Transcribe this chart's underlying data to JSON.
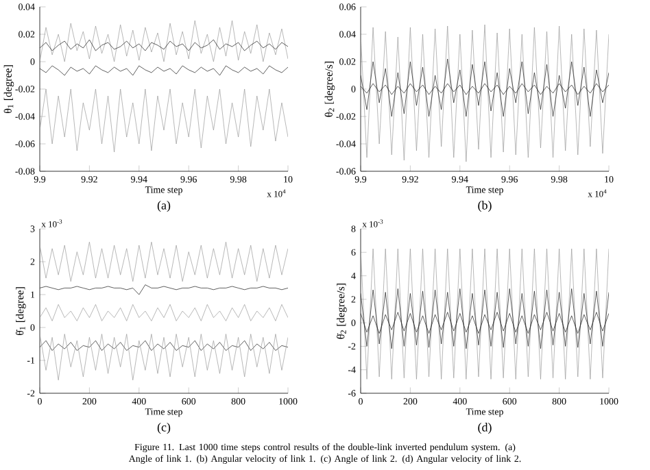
{
  "chart_data": [
    {
      "type": "line",
      "title": "(a)",
      "xlabel": "Time step",
      "ylabel": "θ$_{1}$ [degree]",
      "annotations": [
        "x 10$^{4}$"
      ],
      "xlim": [
        9.9,
        10
      ],
      "xticks": [
        9.9,
        9.92,
        9.94,
        9.96,
        9.98,
        10
      ],
      "ylim": [
        -0.08,
        0.04
      ],
      "yticks": [
        -0.08,
        -0.06,
        -0.04,
        -0.02,
        0,
        0.02,
        0.04
      ],
      "x": [
        9.9,
        9.9025,
        9.905,
        9.9075,
        9.91,
        9.9125,
        9.915,
        9.9175,
        9.92,
        9.9225,
        9.925,
        9.9275,
        9.93,
        9.9325,
        9.935,
        9.9375,
        9.94,
        9.9425,
        9.945,
        9.9475,
        9.95,
        9.9525,
        9.955,
        9.9575,
        9.96,
        9.9625,
        9.965,
        9.9675,
        9.97,
        9.9725,
        9.975,
        9.9775,
        9.98,
        9.9825,
        9.985,
        9.9875,
        9.99,
        9.9925,
        9.995,
        9.9975,
        10
      ],
      "series": [
        {
          "color": "#999999",
          "values": [
            -0.05,
            -0.02,
            -0.06,
            -0.025,
            -0.055,
            -0.02,
            -0.065,
            -0.03,
            -0.05,
            -0.02,
            -0.06,
            -0.025,
            -0.066,
            -0.02,
            -0.055,
            -0.03,
            -0.06,
            -0.02,
            -0.065,
            -0.025,
            -0.05,
            -0.02,
            -0.06,
            -0.03,
            -0.055,
            -0.02,
            -0.063,
            -0.025,
            -0.05,
            -0.02,
            -0.06,
            -0.03,
            -0.055,
            -0.02,
            -0.062,
            -0.025,
            -0.05,
            -0.02,
            -0.058,
            -0.03,
            -0.055
          ]
        },
        {
          "color": "#999999",
          "values": [
            0.0,
            0.025,
            0.005,
            0.02,
            0.0,
            0.028,
            0.008,
            0.022,
            0.002,
            0.026,
            0.006,
            0.02,
            0.0,
            0.027,
            0.004,
            0.023,
            0.001,
            0.025,
            0.007,
            0.021,
            0.0,
            0.028,
            0.005,
            0.022,
            0.002,
            0.03,
            0.006,
            0.02,
            0.0,
            0.025,
            0.004,
            0.03,
            0.001,
            0.022,
            0.006,
            0.027,
            0.0,
            0.021,
            0.005,
            0.024,
            0.002
          ]
        },
        {
          "color": "#1a1a1a",
          "values": [
            0.01,
            0.014,
            0.008,
            0.012,
            0.015,
            0.009,
            0.013,
            0.01,
            0.016,
            0.008,
            0.012,
            0.014,
            0.009,
            0.011,
            0.015,
            0.01,
            0.013,
            0.008,
            0.014,
            0.012,
            0.009,
            0.015,
            0.011,
            0.013,
            0.008,
            0.014,
            0.01,
            0.012,
            0.016,
            0.009,
            0.013,
            0.011,
            0.014,
            0.008,
            0.012,
            0.015,
            0.01,
            0.013,
            0.009,
            0.014,
            0.011
          ]
        },
        {
          "color": "#1a1a1a",
          "values": [
            -0.005,
            -0.008,
            -0.003,
            -0.006,
            -0.01,
            -0.004,
            -0.007,
            -0.005,
            -0.009,
            -0.003,
            -0.006,
            -0.008,
            -0.004,
            -0.007,
            -0.005,
            -0.01,
            -0.003,
            -0.006,
            -0.008,
            -0.004,
            -0.007,
            -0.005,
            -0.009,
            -0.003,
            -0.006,
            -0.008,
            -0.004,
            -0.007,
            -0.005,
            -0.01,
            -0.003,
            -0.006,
            -0.008,
            -0.004,
            -0.007,
            -0.005,
            -0.009,
            -0.003,
            -0.006,
            -0.008,
            -0.004
          ]
        }
      ]
    },
    {
      "type": "line",
      "title": "(b)",
      "xlabel": "Time step",
      "ylabel": "θ$_{2}$ [degree/s]",
      "annotations": [
        "x 10$^{4}$"
      ],
      "xlim": [
        9.9,
        10
      ],
      "xticks": [
        9.9,
        9.92,
        9.94,
        9.96,
        9.98,
        10
      ],
      "ylim": [
        -0.06,
        0.06
      ],
      "yticks": [
        -0.06,
        -0.04,
        -0.02,
        0,
        0.02,
        0.04,
        0.06
      ],
      "x": [
        9.9,
        9.9025,
        9.905,
        9.9075,
        9.91,
        9.9125,
        9.915,
        9.9175,
        9.92,
        9.9225,
        9.925,
        9.9275,
        9.93,
        9.9325,
        9.935,
        9.9375,
        9.94,
        9.9425,
        9.945,
        9.9475,
        9.95,
        9.9525,
        9.955,
        9.9575,
        9.96,
        9.9625,
        9.965,
        9.9675,
        9.97,
        9.9725,
        9.975,
        9.9775,
        9.98,
        9.9825,
        9.985,
        9.9875,
        9.99,
        9.9925,
        9.995,
        9.9975,
        10
      ],
      "series": [
        {
          "color": "#999999",
          "values": [
            0.04,
            -0.05,
            0.045,
            -0.04,
            0.042,
            -0.048,
            0.038,
            -0.052,
            0.045,
            -0.045,
            0.04,
            -0.05,
            0.044,
            -0.042,
            0.046,
            -0.05,
            0.04,
            -0.053,
            0.043,
            -0.044,
            0.047,
            -0.05,
            0.041,
            -0.046,
            0.044,
            -0.048,
            0.04,
            -0.05,
            0.045,
            -0.043,
            0.042,
            -0.05,
            0.046,
            -0.045,
            0.04,
            -0.048,
            0.044,
            -0.042,
            0.043,
            -0.047,
            0.04
          ]
        },
        {
          "color": "#1a1a1a",
          "values": [
            0.01,
            -0.015,
            0.02,
            -0.01,
            0.015,
            -0.02,
            0.012,
            -0.018,
            0.02,
            -0.012,
            0.016,
            -0.02,
            0.01,
            -0.015,
            0.022,
            -0.01,
            0.014,
            -0.02,
            0.018,
            -0.012,
            0.02,
            -0.016,
            0.012,
            -0.02,
            0.015,
            -0.01,
            0.02,
            -0.018,
            0.012,
            -0.015,
            0.018,
            -0.02,
            0.01,
            -0.014,
            0.02,
            -0.012,
            0.016,
            -0.02,
            0.014,
            -0.01,
            0.012
          ]
        },
        {
          "color": "#1a1a1a",
          "values": [
            0.002,
            -0.003,
            0.004,
            -0.002,
            0.003,
            -0.004,
            0.002,
            -0.003,
            0.004,
            -0.002,
            0.003,
            -0.004,
            0.002,
            -0.003,
            0.004,
            -0.002,
            0.003,
            -0.004,
            0.002,
            -0.003,
            0.004,
            -0.002,
            0.003,
            -0.004,
            0.002,
            -0.003,
            0.004,
            -0.002,
            0.003,
            -0.004,
            0.002,
            -0.003,
            0.004,
            -0.002,
            0.003,
            -0.004,
            0.002,
            -0.003,
            0.004,
            -0.002,
            0.003
          ]
        }
      ]
    },
    {
      "type": "line",
      "title": "(c)",
      "xlabel": "Time step",
      "ylabel": "θ̇$_{1}$ [degree]",
      "annotations": [
        "x 10$^{-3}$"
      ],
      "xlim": [
        0,
        1000
      ],
      "xticks": [
        0,
        200,
        400,
        600,
        800,
        1000
      ],
      "ylim": [
        -2,
        3
      ],
      "yticks": [
        -2,
        -1,
        0,
        1,
        2,
        3
      ],
      "x": [
        0,
        25,
        50,
        75,
        100,
        125,
        150,
        175,
        200,
        225,
        250,
        275,
        300,
        325,
        350,
        375,
        400,
        425,
        450,
        475,
        500,
        525,
        550,
        575,
        600,
        625,
        650,
        675,
        700,
        725,
        750,
        775,
        800,
        825,
        850,
        875,
        900,
        925,
        950,
        975,
        1000
      ],
      "series": [
        {
          "color": "#999999",
          "values": [
            2.5,
            1.5,
            2.4,
            1.6,
            2.5,
            1.4,
            2.3,
            1.6,
            2.6,
            1.5,
            2.4,
            1.5,
            2.5,
            1.6,
            2.4,
            1.4,
            2.5,
            1.5,
            2.6,
            1.6,
            2.4,
            1.5,
            2.5,
            1.4,
            2.3,
            1.6,
            2.5,
            1.5,
            2.4,
            1.6,
            2.6,
            1.5,
            2.4,
            1.6,
            2.5,
            1.4,
            2.4,
            1.5,
            2.5,
            1.6,
            2.4
          ]
        },
        {
          "color": "#1a1a1a",
          "values": [
            1.2,
            1.25,
            1.2,
            1.15,
            1.2,
            1.2,
            1.25,
            1.2,
            1.15,
            1.2,
            1.2,
            1.25,
            1.2,
            1.2,
            1.15,
            1.2,
            1.0,
            1.3,
            1.2,
            1.2,
            1.25,
            1.2,
            1.15,
            1.2,
            1.2,
            1.25,
            1.2,
            1.2,
            1.15,
            1.2,
            1.2,
            1.25,
            1.2,
            1.15,
            1.2,
            1.2,
            1.25,
            1.2,
            1.2,
            1.15,
            1.2
          ]
        },
        {
          "color": "#1a1a1a",
          "values": [
            -0.6,
            -0.4,
            -0.7,
            -0.5,
            -0.65,
            -0.45,
            -0.7,
            -0.55,
            -0.6,
            -0.4,
            -0.7,
            -0.5,
            -0.65,
            -0.45,
            -0.7,
            -0.55,
            -0.6,
            -0.4,
            -0.7,
            -0.5,
            -0.65,
            -0.45,
            -0.7,
            -0.55,
            -0.6,
            -0.4,
            -0.7,
            -0.5,
            -0.65,
            -0.45,
            -0.7,
            -0.55,
            -0.6,
            -0.4,
            -0.7,
            -0.5,
            -0.65,
            -0.45,
            -0.7,
            -0.55,
            -0.6
          ]
        },
        {
          "color": "#999999",
          "values": [
            -0.2,
            -1.3,
            -0.3,
            -1.6,
            -0.2,
            -1.2,
            -0.4,
            -1.5,
            -0.3,
            -1.3,
            -0.2,
            -1.4,
            -0.3,
            -1.2,
            -0.2,
            -1.6,
            -0.4,
            -1.3,
            -0.2,
            -1.4,
            -0.3,
            -1.5,
            -0.2,
            -1.2,
            -0.3,
            -1.5,
            -0.2,
            -1.3,
            -0.4,
            -1.4,
            -0.2,
            -1.3,
            -0.3,
            -1.5,
            -0.2,
            -1.2,
            -0.3,
            -1.4,
            -0.2,
            -1.3,
            -0.3
          ]
        },
        {
          "color": "#999999",
          "values": [
            0.3,
            0.6,
            0.2,
            0.7,
            0.3,
            0.5,
            0.2,
            0.6,
            0.3,
            0.7,
            0.2,
            0.5,
            0.3,
            0.6,
            0.2,
            0.7,
            0.3,
            0.5,
            0.2,
            0.6,
            0.3,
            0.7,
            0.2,
            0.5,
            0.3,
            0.6,
            0.2,
            0.7,
            0.3,
            0.5,
            0.2,
            0.6,
            0.3,
            0.7,
            0.2,
            0.5,
            0.3,
            0.6,
            0.2,
            0.7,
            0.3
          ]
        }
      ]
    },
    {
      "type": "line",
      "title": "(d)",
      "xlabel": "Time step",
      "ylabel": "θ̇$_{2}$ [degree/s]",
      "annotations": [
        "x 10$^{-3}$",
        "Figure 11. Last 1000 time steps control results of the double-link inverted pendulum system. (a) Angle of link 1. (b) Angular velocity of link 1. (c) Angle of link 2. (d) Angular velocity of link 2."
      ],
      "xlim": [
        0,
        1000
      ],
      "xticks": [
        0,
        200,
        400,
        600,
        800,
        1000
      ],
      "ylim": [
        -6,
        8
      ],
      "yticks": [
        -6,
        -4,
        -2,
        0,
        2,
        4,
        6,
        8
      ],
      "x": [
        0,
        25,
        50,
        75,
        100,
        125,
        150,
        175,
        200,
        225,
        250,
        275,
        300,
        325,
        350,
        375,
        400,
        425,
        450,
        475,
        500,
        525,
        550,
        575,
        600,
        625,
        650,
        675,
        700,
        725,
        750,
        775,
        800,
        825,
        850,
        875,
        900,
        925,
        950,
        975,
        1000
      ],
      "series": [
        {
          "color": "#999999",
          "values": [
            6.3,
            -4.8,
            6.3,
            -4.6,
            6.3,
            -4.8,
            6.3,
            -4.7,
            6.3,
            -4.8,
            6.3,
            -4.6,
            6.3,
            -4.8,
            6.3,
            -4.7,
            6.3,
            -4.8,
            6.3,
            -4.6,
            6.3,
            -4.8,
            6.3,
            -4.7,
            6.3,
            -4.8,
            6.3,
            -4.6,
            6.3,
            -4.8,
            6.3,
            -4.7,
            6.3,
            -4.8,
            6.3,
            -4.6,
            6.3,
            -4.8,
            6.3,
            -4.7,
            6.3
          ]
        },
        {
          "color": "#1a1a1a",
          "values": [
            2.5,
            -2.0,
            2.8,
            -1.8,
            2.6,
            -2.2,
            2.9,
            -2.0,
            2.5,
            -1.9,
            2.7,
            -2.1,
            2.8,
            -1.8,
            2.6,
            -2.0,
            2.9,
            -2.2,
            2.5,
            -1.9,
            2.8,
            -2.0,
            2.6,
            -2.1,
            2.9,
            -1.8,
            2.5,
            -2.0,
            2.7,
            -2.2,
            2.8,
            -1.9,
            2.6,
            -2.0,
            2.9,
            -2.1,
            2.5,
            -1.8,
            2.7,
            -2.0,
            2.6
          ]
        },
        {
          "color": "#1a1a1a",
          "values": [
            0.8,
            -0.8,
            0.6,
            -0.9,
            0.7,
            -0.6,
            0.9,
            -0.7,
            0.8,
            -0.8,
            0.6,
            -0.9,
            0.7,
            -0.6,
            0.9,
            -0.7,
            0.8,
            -0.8,
            0.6,
            -0.9,
            0.7,
            -0.6,
            0.9,
            -0.7,
            0.8,
            -0.8,
            0.6,
            -0.9,
            0.7,
            -0.6,
            0.9,
            -0.7,
            0.8,
            -0.8,
            0.6,
            -0.9,
            0.7,
            -0.6,
            0.9,
            -0.7,
            0.8
          ]
        }
      ]
    }
  ]
}
